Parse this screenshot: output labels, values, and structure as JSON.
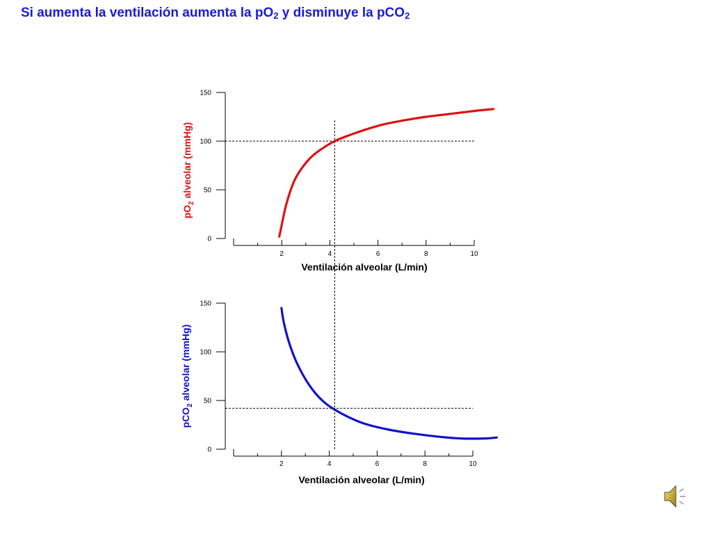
{
  "slide": {
    "title_parts": [
      {
        "text": "Si aumenta la ventilación aumenta la pO",
        "sub": false
      },
      {
        "text": "2",
        "sub": true
      },
      {
        "text": " y disminuye la pCO",
        "sub": false
      },
      {
        "text": "2",
        "sub": true
      }
    ],
    "title_color": "#1a1adb",
    "audio_icon": "speaker-icon"
  },
  "chart_data": [
    {
      "type": "line",
      "title": "",
      "xlabel": "Ventilación alveolar (L/min)",
      "ylabel_parts": [
        {
          "text": "pO",
          "sub": false
        },
        {
          "text": "2",
          "sub": true
        },
        {
          "text": " alveolar (mmHg)",
          "sub": false
        }
      ],
      "ylabel_color": "#dd1111",
      "xlim": [
        0,
        10
      ],
      "ylim": [
        0,
        150
      ],
      "xticks": [
        2,
        4,
        6,
        8,
        10
      ],
      "yticks": [
        0,
        50,
        100,
        150
      ],
      "grid": false,
      "series": [
        {
          "color": "#dd1111",
          "x": [
            1.9,
            2.0,
            2.2,
            2.5,
            2.8,
            3.2,
            3.6,
            4.2,
            4.8,
            5.5,
            6.2,
            7.0,
            8.0,
            9.0,
            10.0,
            10.8
          ],
          "y": [
            2,
            14,
            36,
            58,
            71,
            83,
            91,
            100,
            106,
            112,
            117,
            121,
            125,
            128,
            131,
            133
          ]
        }
      ],
      "reference_lines": {
        "x": 4.2,
        "y": 100
      }
    },
    {
      "type": "line",
      "title": "",
      "xlabel": "Ventilación alveolar (L/min)",
      "ylabel_parts": [
        {
          "text": "pCO",
          "sub": false
        },
        {
          "text": "2",
          "sub": true
        },
        {
          "text": " alveolar (mmHg)",
          "sub": false
        }
      ],
      "ylabel_color": "#1111cc",
      "xlim": [
        0,
        10
      ],
      "ylim": [
        0,
        150
      ],
      "xticks": [
        2,
        4,
        6,
        8,
        10
      ],
      "yticks": [
        0,
        50,
        100,
        150
      ],
      "grid": false,
      "series": [
        {
          "color": "#1111cc",
          "x": [
            2.0,
            2.1,
            2.3,
            2.6,
            3.0,
            3.4,
            3.8,
            4.2,
            4.8,
            5.5,
            6.5,
            7.5,
            8.5,
            9.5,
            10.5,
            11.0
          ],
          "y": [
            145,
            130,
            111,
            91,
            72,
            58,
            48,
            41,
            33,
            26,
            20,
            16,
            13,
            11,
            11,
            12
          ]
        }
      ],
      "reference_lines": {
        "x": 4.2,
        "y": 42
      }
    }
  ]
}
